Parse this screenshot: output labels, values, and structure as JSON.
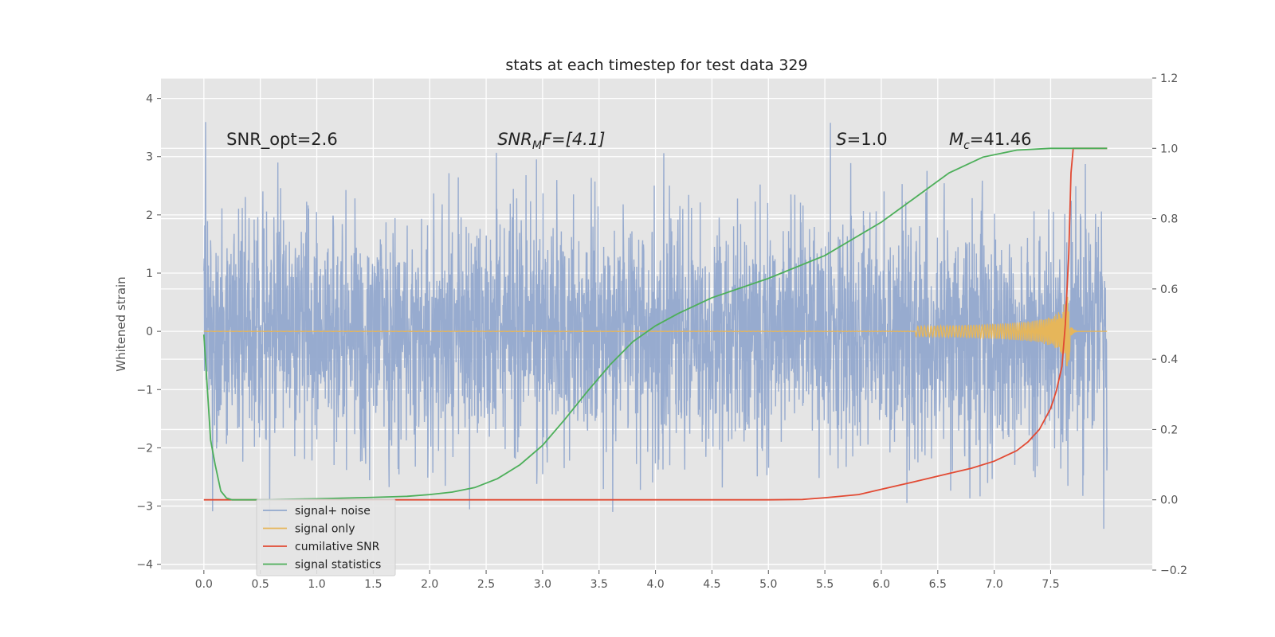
{
  "chart_data": {
    "type": "line",
    "title": "stats at each timestep for test data 329",
    "xlabel": "",
    "ylabel": "Whitened strain",
    "y2label": "",
    "xlim": [
      -0.38,
      8.4
    ],
    "ylim": [
      -4.1,
      4.35
    ],
    "y2lim": [
      -0.2,
      1.2
    ],
    "grid": true,
    "x_ticks": [
      "0.0",
      "0.5",
      "1.0",
      "1.5",
      "2.0",
      "2.5",
      "3.0",
      "3.5",
      "4.0",
      "4.5",
      "5.0",
      "5.5",
      "6.0",
      "6.5",
      "7.0",
      "7.5"
    ],
    "y_ticks": [
      "−4",
      "−3",
      "−2",
      "−1",
      "0",
      "1",
      "2",
      "3",
      "4"
    ],
    "y2_ticks": [
      "−0.2",
      "0.0",
      "0.2",
      "0.4",
      "0.6",
      "0.8",
      "1.0",
      "1.2"
    ],
    "annotations": [
      {
        "text": "SNR_opt=2.6",
        "x": 0.2,
        "y": 3.2,
        "kind": "plain"
      },
      {
        "text": "F=[4.1]",
        "main": "SNR",
        "sub": "M",
        "x": 2.6,
        "y": 3.2,
        "kind": "math"
      },
      {
        "text": "=1.0",
        "main": "S",
        "sub": "",
        "x": 5.6,
        "y": 3.2,
        "kind": "math"
      },
      {
        "text": "=41.46",
        "main": "M",
        "sub": "c",
        "x": 6.6,
        "y": 3.2,
        "kind": "math"
      }
    ],
    "legend": {
      "placement": "lower-left",
      "entries": [
        "signal+ noise",
        "signal only",
        "cumilative SNR",
        "signal statistics"
      ]
    },
    "series": [
      {
        "name": "signal+ noise",
        "axis": "left",
        "color": "#92a8cd",
        "kind": "noise",
        "x_range": [
          0.0,
          8.0
        ],
        "typical_amplitude": 1.0,
        "extreme_range": [
          -3.65,
          4.0
        ]
      },
      {
        "name": "signal only",
        "axis": "left",
        "color": "#e6b65a",
        "kind": "chirp",
        "x_range": [
          0.0,
          8.0
        ],
        "merger_time": 7.67,
        "peak_amplitude": 0.6
      },
      {
        "name": "cumilative SNR",
        "axis": "right",
        "color": "#e24a33",
        "x": [
          0.0,
          1.0,
          2.0,
          3.0,
          4.0,
          5.0,
          5.3,
          5.5,
          5.8,
          6.0,
          6.3,
          6.6,
          6.8,
          7.0,
          7.2,
          7.3,
          7.4,
          7.5,
          7.55,
          7.6,
          7.63,
          7.66,
          7.68,
          7.7,
          8.0
        ],
        "values": [
          0.0,
          0.0,
          0.0,
          0.0,
          0.0,
          0.0,
          0.001,
          0.006,
          0.015,
          0.03,
          0.052,
          0.075,
          0.09,
          0.11,
          0.14,
          0.165,
          0.2,
          0.26,
          0.31,
          0.38,
          0.5,
          0.7,
          0.93,
          1.0,
          1.0
        ]
      },
      {
        "name": "signal statistics",
        "axis": "right",
        "color": "#4daf5a",
        "x": [
          0.0,
          0.03,
          0.06,
          0.1,
          0.15,
          0.2,
          0.25,
          0.35,
          0.5,
          1.0,
          1.5,
          1.8,
          2.0,
          2.2,
          2.4,
          2.6,
          2.8,
          3.0,
          3.2,
          3.4,
          3.6,
          3.8,
          4.0,
          4.2,
          4.5,
          5.0,
          5.5,
          6.0,
          6.3,
          6.6,
          6.9,
          7.2,
          7.5,
          7.8,
          8.0
        ],
        "values": [
          0.47,
          0.32,
          0.17,
          0.1,
          0.025,
          0.005,
          0.0,
          0.0,
          0.0,
          0.003,
          0.007,
          0.01,
          0.015,
          0.022,
          0.035,
          0.06,
          0.1,
          0.155,
          0.23,
          0.31,
          0.385,
          0.45,
          0.495,
          0.53,
          0.575,
          0.63,
          0.695,
          0.79,
          0.86,
          0.93,
          0.975,
          0.995,
          1.0,
          1.0,
          1.0
        ]
      }
    ]
  }
}
